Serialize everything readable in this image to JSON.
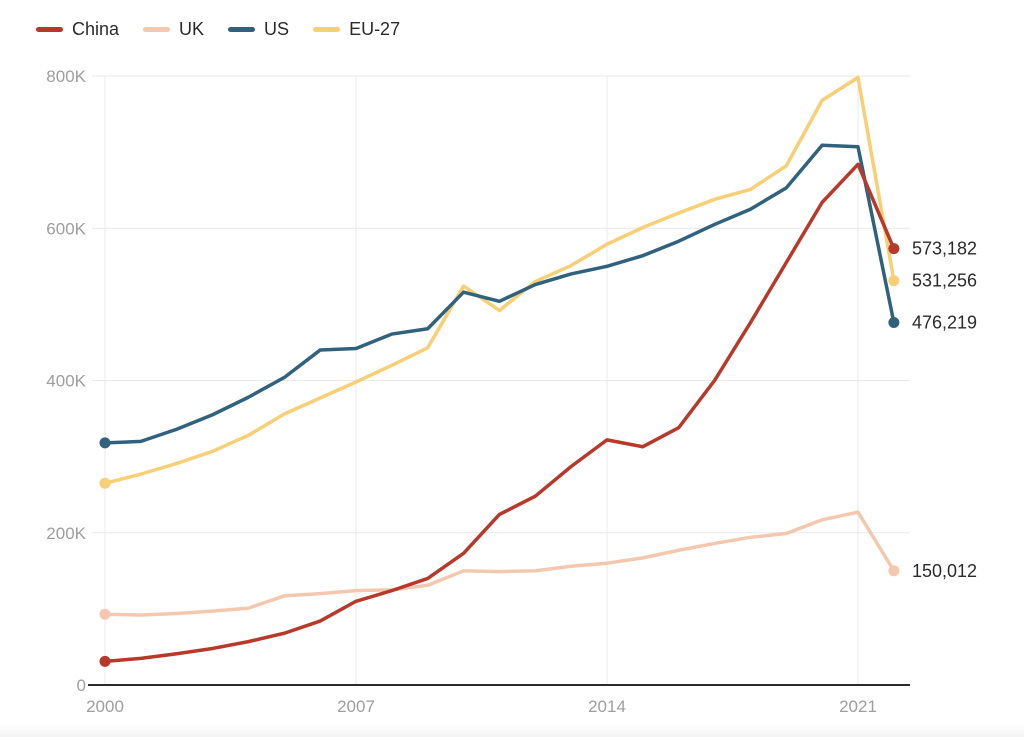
{
  "chart_data": {
    "type": "line",
    "x": [
      2000,
      2001,
      2002,
      2003,
      2004,
      2005,
      2006,
      2007,
      2008,
      2009,
      2010,
      2011,
      2012,
      2013,
      2014,
      2015,
      2016,
      2017,
      2018,
      2019,
      2020,
      2021,
      2022
    ],
    "x_ticks": [
      2000,
      2007,
      2014,
      2021
    ],
    "x_tick_labels": [
      "2000",
      "2007",
      "2014",
      "2021"
    ],
    "y_ticks": [
      0,
      200000,
      400000,
      600000,
      800000
    ],
    "y_tick_labels": [
      "0",
      "200K",
      "400K",
      "600K",
      "800K"
    ],
    "ylim": [
      0,
      800000
    ],
    "xlim": [
      2000,
      2022.5
    ],
    "grid": true,
    "legend_position": "top-left",
    "series": [
      {
        "name": "China",
        "color": "#b8382a",
        "end_label": "573,182",
        "values": [
          31000,
          35000,
          41000,
          48000,
          57000,
          68000,
          84000,
          110000,
          124000,
          140000,
          173000,
          224000,
          248000,
          287000,
          322000,
          313000,
          338000,
          400000,
          476000,
          555000,
          634000,
          684000,
          573182
        ]
      },
      {
        "name": "UK",
        "color": "#f4c8af",
        "end_label": "150,012",
        "values": [
          93000,
          92000,
          94000,
          97000,
          101000,
          117000,
          120000,
          124000,
          125000,
          131000,
          150000,
          149000,
          150000,
          156000,
          160000,
          167000,
          177000,
          186000,
          194000,
          199000,
          217000,
          227000,
          150012
        ]
      },
      {
        "name": "US",
        "color": "#30627e",
        "end_label": "476,219",
        "values": [
          318000,
          320000,
          336000,
          355000,
          378000,
          404000,
          440000,
          442000,
          461000,
          468000,
          516000,
          504000,
          526000,
          540000,
          550000,
          564000,
          583000,
          605000,
          625000,
          653000,
          709000,
          707000,
          476219
        ]
      },
      {
        "name": "EU-27",
        "color": "#f8cf74",
        "end_label": "531,256",
        "values": [
          265000,
          277000,
          291000,
          307000,
          328000,
          356000,
          377000,
          398000,
          420000,
          443000,
          524000,
          492000,
          530000,
          551000,
          579000,
          601000,
          620000,
          638000,
          651000,
          682000,
          768000,
          798000,
          531256
        ]
      }
    ]
  }
}
